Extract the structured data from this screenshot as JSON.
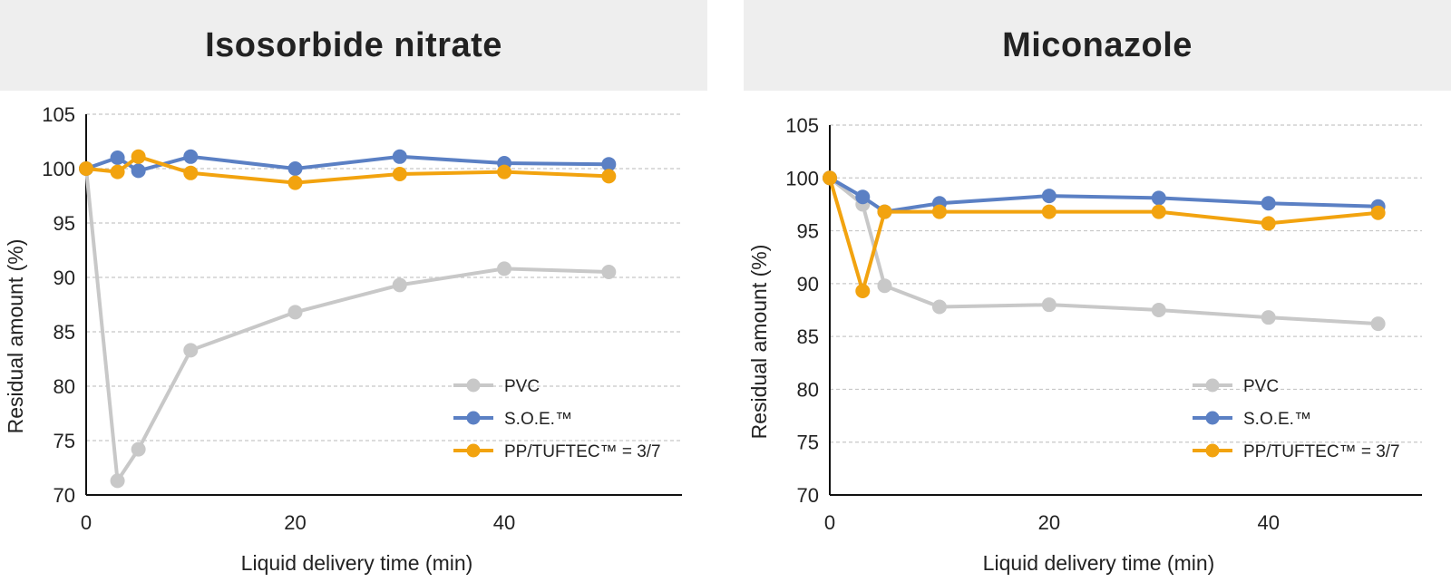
{
  "colors": {
    "pvc": "#c8c8c8",
    "soe": "#5b80c4",
    "pp": "#f2a30f",
    "grid": "#c8c8c8",
    "axis": "#111111",
    "title_bg": "#eeeeee"
  },
  "legend": {
    "pvc": "PVC",
    "soe": "S.O.E.™",
    "pp": "PP/TUFTEC™ = 3/7"
  },
  "chart_data": [
    {
      "type": "line",
      "title": "Isosorbide nitrate",
      "xlabel": "Liquid delivery time (min)",
      "ylabel": "Residual amount (%)",
      "xlim": [
        0,
        57
      ],
      "ylim": [
        70,
        105
      ],
      "xticks": [
        0,
        20,
        40
      ],
      "yticks": [
        70,
        75,
        80,
        85,
        90,
        95,
        100,
        105
      ],
      "grid": "horizontal dashed",
      "legend_position": "bottom-right",
      "series": [
        {
          "name": "PVC",
          "color_key": "pvc",
          "x": [
            0,
            3,
            5,
            10,
            20,
            30,
            40,
            50
          ],
          "y": [
            100,
            71.3,
            74.2,
            83.3,
            86.8,
            89.3,
            90.8,
            90.5
          ]
        },
        {
          "name": "S.O.E.™",
          "color_key": "soe",
          "x": [
            0,
            3,
            5,
            10,
            20,
            30,
            40,
            50
          ],
          "y": [
            100,
            101,
            99.8,
            101.1,
            100,
            101.1,
            100.5,
            100.4
          ]
        },
        {
          "name": "PP/TUFTEC™ = 3/7",
          "color_key": "pp",
          "x": [
            0,
            3,
            5,
            10,
            20,
            30,
            40,
            50
          ],
          "y": [
            100,
            99.7,
            101.1,
            99.6,
            98.7,
            99.5,
            99.7,
            99.3
          ]
        }
      ]
    },
    {
      "type": "line",
      "title": "Miconazole",
      "xlabel": "Liquid delivery time (min)",
      "ylabel": "Residual amount (%)",
      "xlim": [
        0,
        54
      ],
      "ylim": [
        70,
        105
      ],
      "xticks": [
        0,
        20,
        40
      ],
      "yticks": [
        70,
        75,
        80,
        85,
        90,
        95,
        100,
        105
      ],
      "grid": "horizontal dashed",
      "legend_position": "bottom-right",
      "series": [
        {
          "name": "PVC",
          "color_key": "pvc",
          "x": [
            0,
            3,
            5,
            10,
            20,
            30,
            40,
            50
          ],
          "y": [
            100,
            97.5,
            89.8,
            87.8,
            88,
            87.5,
            86.8,
            86.2
          ]
        },
        {
          "name": "S.O.E.™",
          "color_key": "soe",
          "x": [
            0,
            3,
            5,
            10,
            20,
            30,
            40,
            50
          ],
          "y": [
            100,
            98.2,
            96.8,
            97.6,
            98.3,
            98.1,
            97.6,
            97.3
          ]
        },
        {
          "name": "PP/TUFTEC™ = 3/7",
          "color_key": "pp",
          "x": [
            0,
            3,
            5,
            10,
            20,
            30,
            40,
            50
          ],
          "y": [
            100,
            89.3,
            96.8,
            96.8,
            96.8,
            96.8,
            95.7,
            96.7
          ]
        }
      ]
    }
  ]
}
